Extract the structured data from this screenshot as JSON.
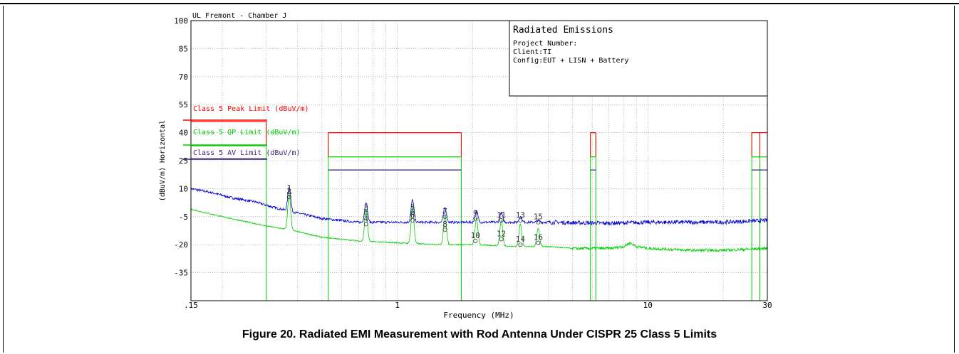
{
  "caption": "Figure 20. Radiated EMI Measurement with Rod Antenna Under CISPR 25 Class 5 Limits",
  "chart_data": {
    "type": "line",
    "header": "UL Fremont - Chamber J",
    "info_box": {
      "title": "Radiated Emissions",
      "lines": [
        "Project Number:",
        "Client:TI",
        "Config:EUT + LISN + Battery"
      ]
    },
    "xlabel": "Frequency (MHz)",
    "ylabel": "(dBuV/m) Horizontal",
    "xscale": "log",
    "xlim": [
      0.15,
      30
    ],
    "ylim": [
      -50,
      100
    ],
    "x_ticks": [
      {
        "value": 0.15,
        "label": ".15"
      },
      {
        "value": 1,
        "label": "1"
      },
      {
        "value": 10,
        "label": "10"
      },
      {
        "value": 30,
        "label": "30"
      }
    ],
    "y_ticks": [
      100,
      85,
      70,
      55,
      40,
      25,
      10,
      -5,
      -20,
      -35
    ],
    "grid": true,
    "legend": [
      {
        "label": "Class 5 Peak Limit (dBuV/m)",
        "color": "#ff0000"
      },
      {
        "label": "Class 5 QP Limit (dBuV/m)",
        "color": "#00cc00"
      },
      {
        "label": "Class 5 AV Limit (dBuV/m)",
        "color": "#3a1f7a"
      }
    ],
    "limit_bands": [
      {
        "fmin": 0.15,
        "fmax": 0.3,
        "peak": 46,
        "qp": 33,
        "av": 26
      },
      {
        "fmin": 0.53,
        "fmax": 1.8,
        "peak": 40,
        "qp": 27,
        "av": 20
      },
      {
        "fmin": 5.9,
        "fmax": 6.2,
        "peak": 40,
        "qp": 27,
        "av": 20
      },
      {
        "fmin": 26,
        "fmax": 28,
        "peak": 40,
        "qp": 27,
        "av": 20
      },
      {
        "fmin": 28,
        "fmax": 30,
        "peak": 40,
        "qp": 27,
        "av": 20
      }
    ],
    "series": [
      {
        "color": "#0000cc",
        "x": [
          0.15,
          0.18,
          0.22,
          0.27,
          0.32,
          0.37,
          0.5,
          0.7,
          1,
          2,
          4,
          7,
          10,
          20,
          30
        ],
        "values": [
          10,
          8,
          5,
          3,
          0,
          -2,
          -6,
          -8,
          -8,
          -8,
          -8,
          -8.5,
          -8,
          -8,
          -7
        ]
      },
      {
        "color": "#00cc00",
        "x": [
          0.15,
          0.2,
          0.3,
          0.37,
          0.5,
          0.7,
          1,
          1.5,
          2,
          3,
          4,
          5,
          7,
          8,
          8.5,
          9,
          10,
          15,
          20,
          30
        ],
        "values": [
          -1,
          -5,
          -10,
          -12,
          -16,
          -18,
          -19,
          -20,
          -20,
          -21,
          -21,
          -22,
          -22,
          -21,
          -19,
          -21,
          -22,
          -23,
          -23,
          -22
        ]
      }
    ],
    "peaks": [
      {
        "f": 0.37,
        "amp": 9
      },
      {
        "f": 0.75,
        "amp": 1
      },
      {
        "f": 1.15,
        "amp": 2
      },
      {
        "f": 1.55,
        "amp": -2
      },
      {
        "f": 2.07,
        "amp": -4
      },
      {
        "f": 2.6,
        "amp": -5
      },
      {
        "f": 3.1,
        "amp": -7
      },
      {
        "f": 3.65,
        "amp": -9
      }
    ],
    "markers": [
      {
        "id": "1",
        "f": 0.37,
        "value": 7.5
      },
      {
        "id": "2",
        "f": 0.37,
        "value": 5.5
      },
      {
        "id": "3",
        "f": 0.75,
        "value": -3
      },
      {
        "id": "4",
        "f": 0.75,
        "value": -9
      },
      {
        "id": "5",
        "f": 1.15,
        "value": -3
      },
      {
        "id": "6",
        "f": 1.15,
        "value": -7
      },
      {
        "id": "7",
        "f": 1.55,
        "value": -5
      },
      {
        "id": "8",
        "f": 1.55,
        "value": -12
      },
      {
        "id": "9",
        "f": 2.05,
        "value": -6
      },
      {
        "id": "10",
        "f": 2.05,
        "value": -18
      },
      {
        "id": "11",
        "f": 2.6,
        "value": -7
      },
      {
        "id": "12",
        "f": 2.6,
        "value": -17
      },
      {
        "id": "13",
        "f": 3.1,
        "value": -7
      },
      {
        "id": "14",
        "f": 3.1,
        "value": -20
      },
      {
        "id": "15",
        "f": 3.65,
        "value": -8
      },
      {
        "id": "16",
        "f": 3.65,
        "value": -19
      }
    ]
  }
}
